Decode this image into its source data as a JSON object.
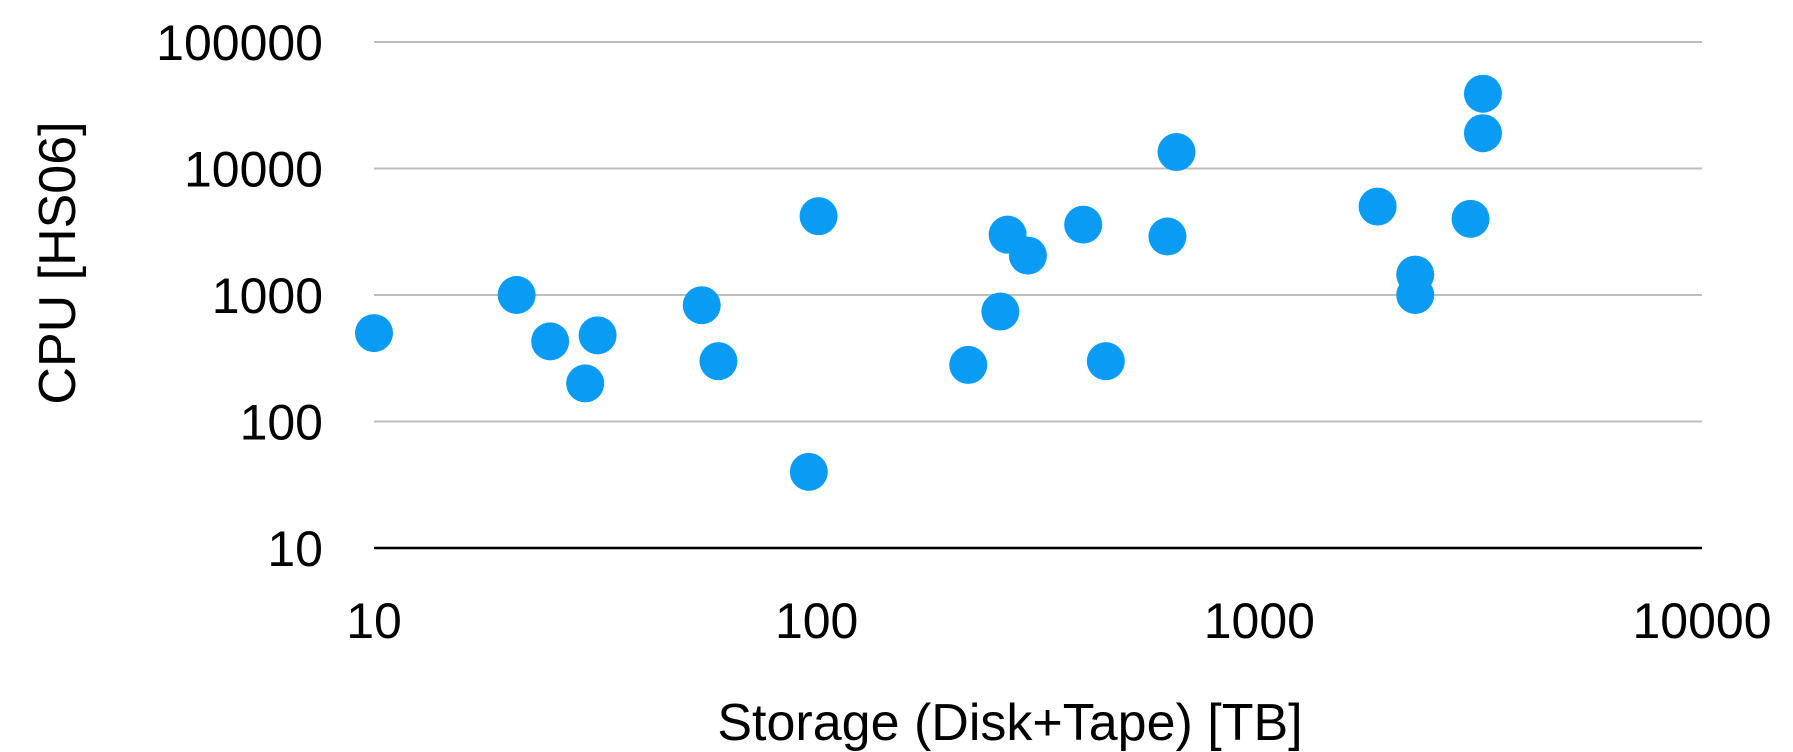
{
  "chart_data": {
    "type": "scatter",
    "xlabel": "Storage (Disk+Tape) [TB]",
    "ylabel": "CPU [HS06]",
    "x_scale": "log",
    "y_scale": "log",
    "xlim": [
      10,
      10000
    ],
    "ylim": [
      10,
      100000
    ],
    "x_ticks": [
      "10",
      "100",
      "1000",
      "10000"
    ],
    "y_ticks": [
      "10",
      "100",
      "1000",
      "10000",
      "100000"
    ],
    "grid": "horizontal",
    "marker_color": "#0a9bf5",
    "points": [
      {
        "x": 10,
        "y": 500
      },
      {
        "x": 21,
        "y": 1000
      },
      {
        "x": 25,
        "y": 430
      },
      {
        "x": 30,
        "y": 200
      },
      {
        "x": 32,
        "y": 480
      },
      {
        "x": 55,
        "y": 830
      },
      {
        "x": 60,
        "y": 300
      },
      {
        "x": 96,
        "y": 40
      },
      {
        "x": 101,
        "y": 4200
      },
      {
        "x": 220,
        "y": 280
      },
      {
        "x": 260,
        "y": 740
      },
      {
        "x": 270,
        "y": 3000
      },
      {
        "x": 300,
        "y": 2050
      },
      {
        "x": 400,
        "y": 3600
      },
      {
        "x": 450,
        "y": 300
      },
      {
        "x": 620,
        "y": 2900
      },
      {
        "x": 650,
        "y": 13500
      },
      {
        "x": 1850,
        "y": 5000
      },
      {
        "x": 2250,
        "y": 1450
      },
      {
        "x": 2250,
        "y": 1000
      },
      {
        "x": 3000,
        "y": 4000
      },
      {
        "x": 3200,
        "y": 19000
      },
      {
        "x": 3200,
        "y": 39000
      }
    ]
  }
}
